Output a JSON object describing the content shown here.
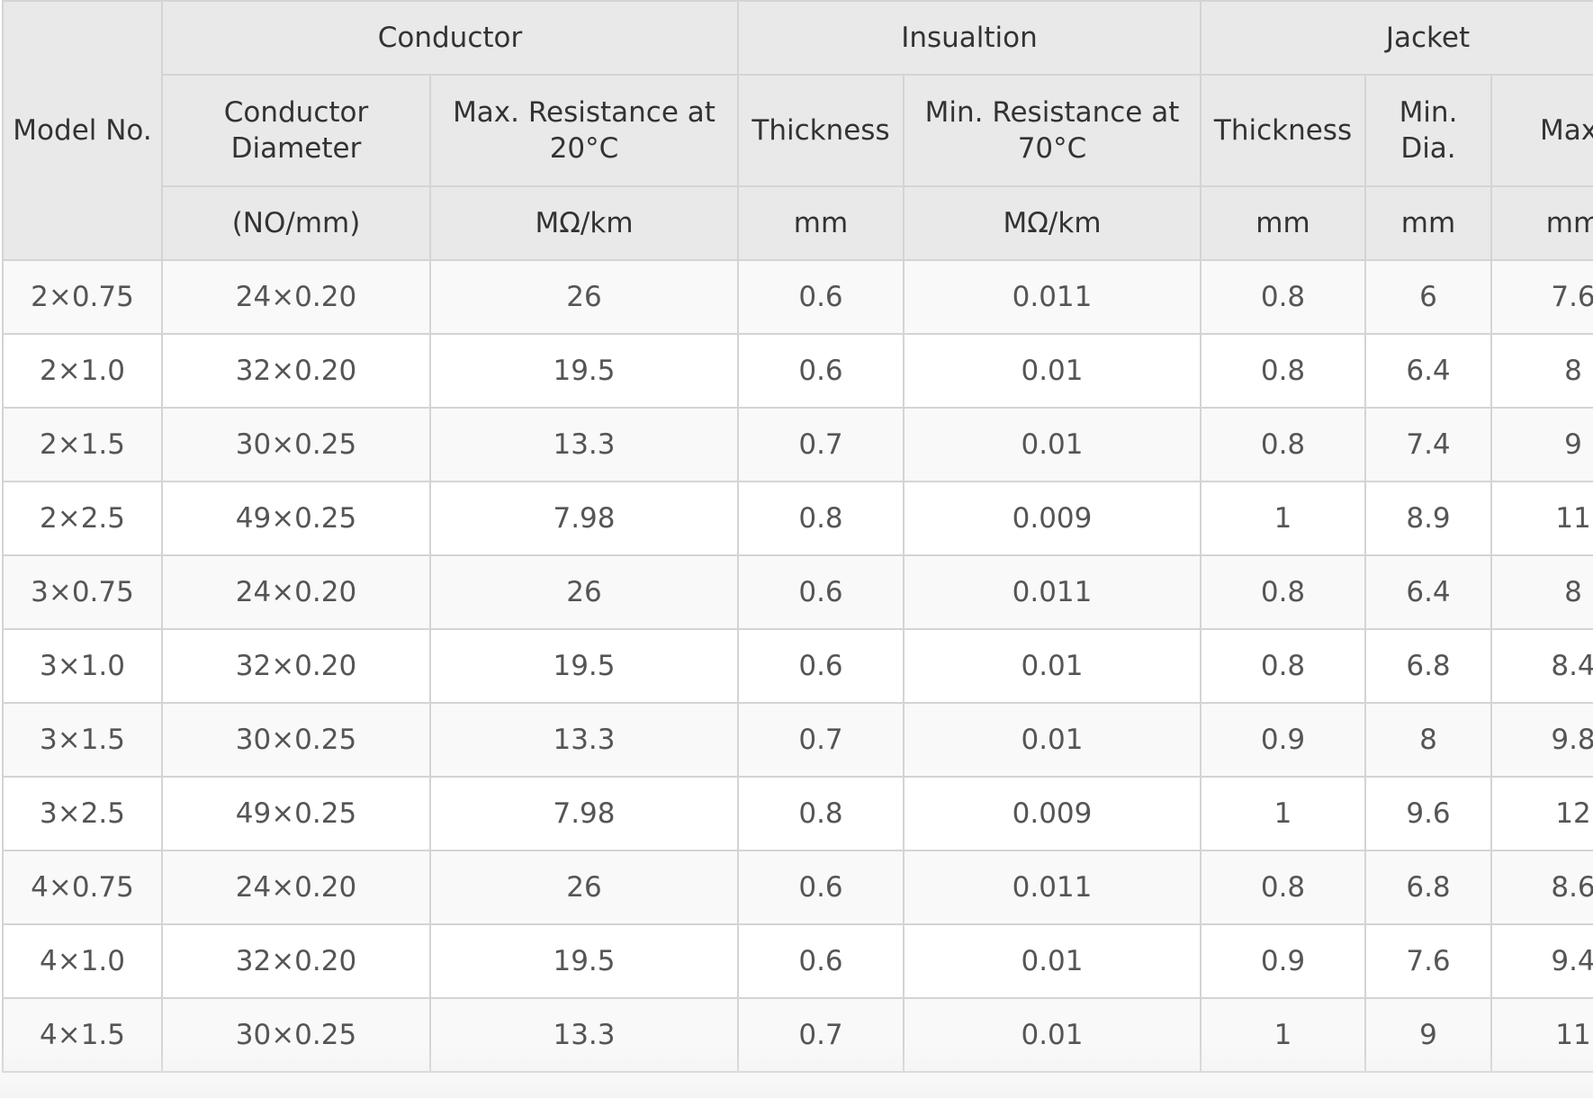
{
  "table": {
    "groups": {
      "model": "Model No.",
      "conductor": "Conductor",
      "insulation": "Insualtion",
      "jacket": "Jacket"
    },
    "params": {
      "conductor_diameter": "Conductor Diameter",
      "max_resistance": "Max. Resistance at 20°C",
      "insulation_thickness": "Thickness",
      "min_resistance": "Min. Resistance at 70°C",
      "jacket_thickness": "Thickness",
      "min_dia": "Min. Dia.",
      "max_dia": "Max."
    },
    "units": {
      "conductor_diameter": "(NO/mm)",
      "max_resistance": "MΩ/km",
      "insulation_thickness": "mm",
      "min_resistance": "MΩ/km",
      "jacket_thickness": "mm",
      "min_dia": "mm",
      "max_dia": "mm"
    },
    "rows": [
      [
        "2×0.75",
        "24×0.20",
        "26",
        "0.6",
        "0.011",
        "0.8",
        "6",
        "7.6"
      ],
      [
        "2×1.0",
        "32×0.20",
        "19.5",
        "0.6",
        "0.01",
        "0.8",
        "6.4",
        "8"
      ],
      [
        "2×1.5",
        "30×0.25",
        "13.3",
        "0.7",
        "0.01",
        "0.8",
        "7.4",
        "9"
      ],
      [
        "2×2.5",
        "49×0.25",
        "7.98",
        "0.8",
        "0.009",
        "1",
        "8.9",
        "11"
      ],
      [
        "3×0.75",
        "24×0.20",
        "26",
        "0.6",
        "0.011",
        "0.8",
        "6.4",
        "8"
      ],
      [
        "3×1.0",
        "32×0.20",
        "19.5",
        "0.6",
        "0.01",
        "0.8",
        "6.8",
        "8.4"
      ],
      [
        "3×1.5",
        "30×0.25",
        "13.3",
        "0.7",
        "0.01",
        "0.9",
        "8",
        "9.8"
      ],
      [
        "3×2.5",
        "49×0.25",
        "7.98",
        "0.8",
        "0.009",
        "1",
        "9.6",
        "12"
      ],
      [
        "4×0.75",
        "24×0.20",
        "26",
        "0.6",
        "0.011",
        "0.8",
        "6.8",
        "8.6"
      ],
      [
        "4×1.0",
        "32×0.20",
        "19.5",
        "0.6",
        "0.01",
        "0.9",
        "7.6",
        "9.4"
      ],
      [
        "4×1.5",
        "30×0.25",
        "13.3",
        "0.7",
        "0.01",
        "1",
        "9",
        "11"
      ]
    ]
  }
}
